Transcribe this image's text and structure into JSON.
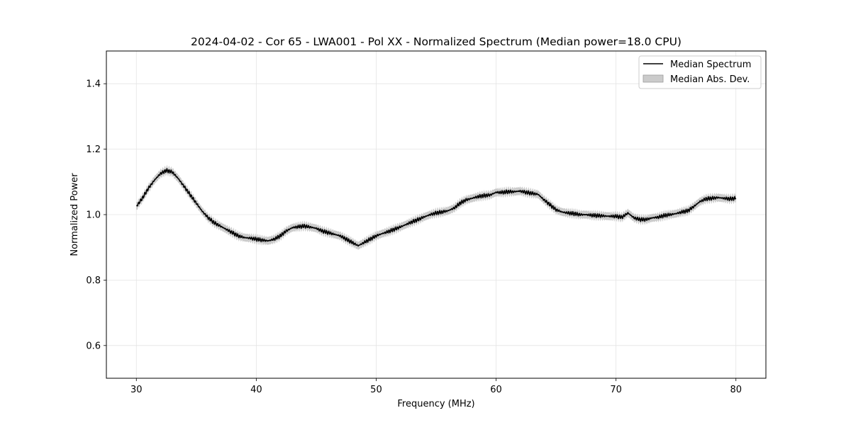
{
  "chart_data": {
    "type": "line",
    "title": "2024-04-02 - Cor 65 - LWA001 - Pol XX - Normalized Spectrum (Median power=18.0 CPU)",
    "xlabel": "Frequency (MHz)",
    "ylabel": "Normalized Power",
    "xlim": [
      27.5,
      82.5
    ],
    "ylim": [
      0.5,
      1.5
    ],
    "xticks": [
      30,
      40,
      50,
      60,
      70,
      80
    ],
    "yticks": [
      0.6,
      0.8,
      1.0,
      1.2,
      1.4
    ],
    "xtick_labels": [
      "30",
      "40",
      "50",
      "60",
      "70",
      "80"
    ],
    "ytick_labels": [
      "0.6",
      "0.8",
      "1.0",
      "1.2",
      "1.4"
    ],
    "grid": true,
    "legend_position": "top-right",
    "series": [
      {
        "name": "Median Spectrum",
        "color": "#000000",
        "x": [
          30,
          30.5,
          31,
          31.5,
          32,
          32.5,
          33,
          33.5,
          34,
          34.5,
          35,
          35.5,
          36,
          36.5,
          37,
          37.5,
          38,
          38.5,
          39,
          39.5,
          40,
          40.5,
          41,
          41.5,
          42,
          42.5,
          43,
          43.5,
          44,
          44.5,
          45,
          45.5,
          46,
          46.5,
          47,
          47.5,
          48,
          48.5,
          49,
          49.5,
          50,
          50.5,
          51,
          51.5,
          52,
          52.5,
          53,
          53.5,
          54,
          54.5,
          55,
          55.5,
          56,
          56.5,
          57,
          57.5,
          58,
          58.5,
          59,
          59.5,
          60,
          60.5,
          61,
          61.5,
          62,
          62.5,
          63,
          63.5,
          64,
          64.5,
          65,
          65.5,
          66,
          66.5,
          67,
          67.5,
          68,
          68.5,
          69,
          69.5,
          70,
          70.5,
          71,
          71.5,
          72,
          72.5,
          73,
          73.5,
          74,
          74.5,
          75,
          75.5,
          76,
          76.5,
          77,
          77.5,
          78,
          78.5,
          79,
          79.5,
          80
        ],
        "values": [
          1.025,
          1.05,
          1.08,
          1.105,
          1.125,
          1.135,
          1.13,
          1.11,
          1.085,
          1.06,
          1.035,
          1.01,
          0.99,
          0.975,
          0.965,
          0.955,
          0.945,
          0.935,
          0.93,
          0.928,
          0.925,
          0.922,
          0.92,
          0.925,
          0.935,
          0.95,
          0.96,
          0.963,
          0.965,
          0.962,
          0.958,
          0.95,
          0.945,
          0.94,
          0.935,
          0.925,
          0.915,
          0.905,
          0.915,
          0.925,
          0.935,
          0.942,
          0.948,
          0.955,
          0.962,
          0.97,
          0.978,
          0.985,
          0.993,
          1.0,
          1.005,
          1.008,
          1.012,
          1.02,
          1.035,
          1.045,
          1.05,
          1.055,
          1.058,
          1.06,
          1.068,
          1.068,
          1.07,
          1.07,
          1.072,
          1.068,
          1.065,
          1.062,
          1.045,
          1.03,
          1.015,
          1.008,
          1.005,
          1.003,
          1.0,
          1.0,
          0.998,
          0.997,
          0.996,
          0.995,
          0.995,
          0.992,
          1.005,
          0.99,
          0.985,
          0.985,
          0.99,
          0.992,
          0.997,
          1.0,
          1.003,
          1.008,
          1.012,
          1.025,
          1.04,
          1.048,
          1.05,
          1.052,
          1.05,
          1.048,
          1.05
        ]
      },
      {
        "name": "Median Abs. Dev.",
        "color": "#b5b5b5",
        "fill_alpha": 0.7,
        "band_halfwidth": 0.012
      }
    ]
  }
}
